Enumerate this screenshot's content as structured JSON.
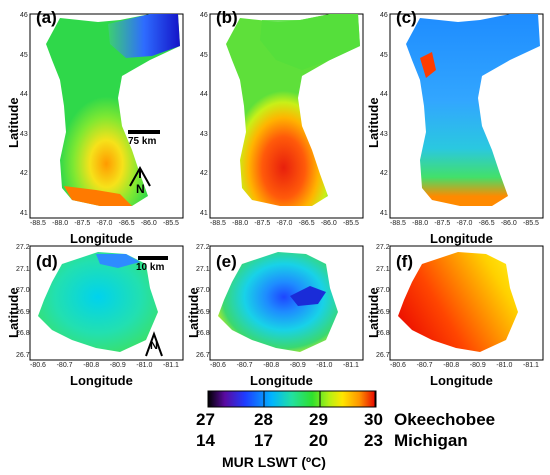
{
  "panels": [
    {
      "id": "a",
      "letter": "(a)",
      "ylabel": "Latitude",
      "xlabel": "Longitude",
      "yticks": [
        "46",
        "45",
        "44",
        "43",
        "42",
        "41"
      ],
      "xticks": [
        "-88.5",
        "-88.0",
        "-87.5",
        "-87.0",
        "-86.5",
        "-86.0",
        "-85.5"
      ],
      "scale_bar": "75 km",
      "north": "N"
    },
    {
      "id": "b",
      "letter": "(b)",
      "ylabel": "",
      "xlabel": "",
      "yticks": [
        "46",
        "45",
        "44",
        "43",
        "42",
        "41"
      ],
      "xticks": [
        "-88.5",
        "-88.0",
        "-87.5",
        "-87.0",
        "-86.5",
        "-86.0",
        "-85.5"
      ]
    },
    {
      "id": "c",
      "letter": "(c)",
      "ylabel": "Latitude",
      "xlabel": "Longitude",
      "yticks": [
        "46",
        "45",
        "44",
        "43",
        "42",
        "41"
      ],
      "xticks": [
        "-88.5",
        "-88.0",
        "-87.5",
        "-87.0",
        "-86.5",
        "-86.0",
        "-85.5"
      ]
    },
    {
      "id": "d",
      "letter": "(d)",
      "ylabel": "Latitude",
      "xlabel": "Longitude",
      "yticks": [
        "27.2",
        "27.1",
        "27.0",
        "26.9",
        "26.8",
        "26.7"
      ],
      "xticks": [
        "-80.6",
        "-80.7",
        "-80.8",
        "-80.9",
        "-81.0",
        "-81.1"
      ],
      "scale_bar": "10 km",
      "north": "N"
    },
    {
      "id": "e",
      "letter": "(e)",
      "ylabel": "Latitude",
      "xlabel": "Longitude",
      "yticks": [
        "27.2",
        "27.1",
        "27.0",
        "26.9",
        "26.8",
        "26.7"
      ],
      "xticks": [
        "-80.6",
        "-80.7",
        "-80.8",
        "-80.9",
        "-81.0",
        "-81.1"
      ]
    },
    {
      "id": "f",
      "letter": "(f)",
      "ylabel": "Latitude",
      "xlabel": "Longitude",
      "yticks": [
        "27.2",
        "27.1",
        "27.0",
        "26.9",
        "26.8",
        "26.7"
      ],
      "xticks": [
        "-80.6",
        "-80.7",
        "-80.8",
        "-80.9",
        "-81.0",
        "-81.1"
      ]
    }
  ],
  "colorbar": {
    "title": "MUR LSWT (ºC)",
    "okeechobee": {
      "name": "Okeechobee",
      "ticks": [
        "27",
        "28",
        "29",
        "30"
      ]
    },
    "michigan": {
      "name": "Michigan",
      "ticks": [
        "14",
        "17",
        "20",
        "23"
      ]
    },
    "colors": [
      "#000000",
      "#5a0aa0",
      "#1e3cff",
      "#00b4ff",
      "#22e0a0",
      "#2ee02e",
      "#b4f014",
      "#ffe600",
      "#ff9600",
      "#ff3c00",
      "#e60000"
    ]
  }
}
